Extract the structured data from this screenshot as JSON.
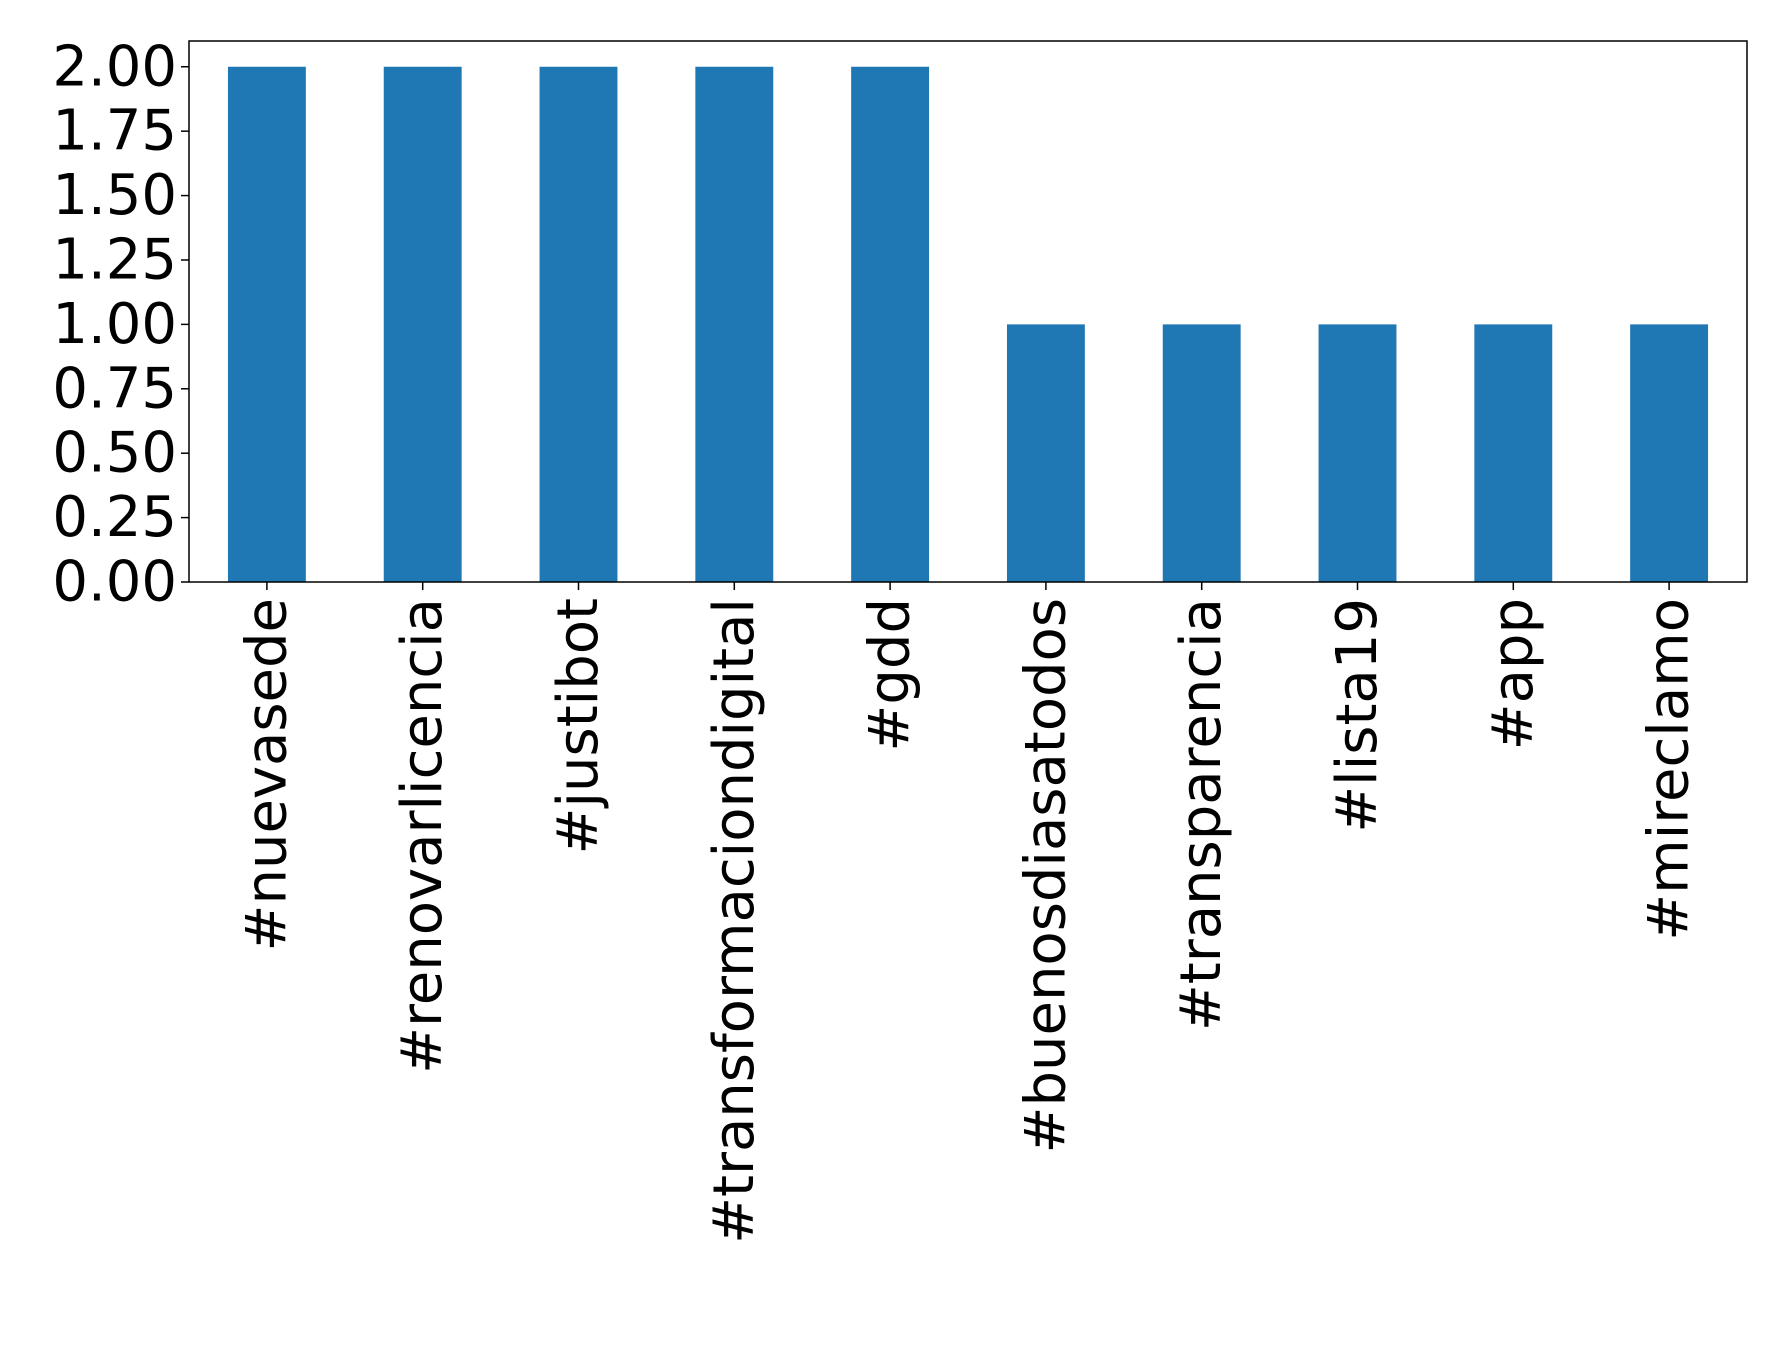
{
  "chart_data": {
    "type": "bar",
    "title": "",
    "xlabel": "",
    "ylabel": "",
    "categories": [
      "#nuevasede",
      "#renovarlicencia",
      "#justibot",
      "#transformaciondigital",
      "#gdd",
      "#buenosdiasatodos",
      "#transparencia",
      "#lista19",
      "#app",
      "#mireclamo"
    ],
    "values": [
      2,
      2,
      2,
      2,
      2,
      1,
      1,
      1,
      1,
      1
    ],
    "ylim": [
      0,
      2.1
    ],
    "yticks": [
      "0.00",
      "0.25",
      "0.50",
      "0.75",
      "1.00",
      "1.25",
      "1.50",
      "1.75",
      "2.00"
    ],
    "ytick_values": [
      0,
      0.25,
      0.5,
      0.75,
      1.0,
      1.25,
      1.5,
      1.75,
      2.0
    ],
    "bar_color": "#1f77b4",
    "grid": false,
    "legend": "none"
  }
}
